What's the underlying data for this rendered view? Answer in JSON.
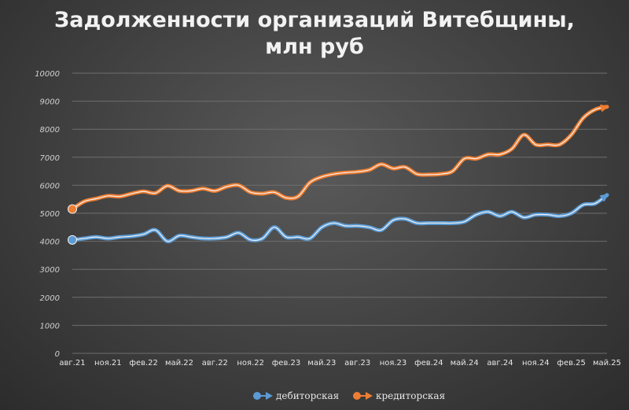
{
  "chart_data": {
    "type": "line",
    "title": [
      "Задолженности организаций Витебщины,",
      "млн руб"
    ],
    "xlabel": "",
    "ylabel": "",
    "ylim": [
      0,
      10000
    ],
    "yticks": [
      "0",
      "1000",
      "2000",
      "3000",
      "4000",
      "5000",
      "6000",
      "7000",
      "8000",
      "9000",
      "10000"
    ],
    "grid": true,
    "legend_position": "bottom",
    "x_tick_labels": [
      "авг.21",
      "ноя.21",
      "фев.22",
      "май.22",
      "авг.22",
      "ноя.22",
      "фев.23",
      "май.23",
      "авг.23",
      "ноя.23",
      "фев.24",
      "май.24",
      "авг.24",
      "ноя.24",
      "фев.25",
      "май.25"
    ],
    "x": [
      "авг.21",
      "сен.21",
      "окт.21",
      "ноя.21",
      "дек.21",
      "янв.22",
      "фев.22",
      "мар.22",
      "апр.22",
      "май.22",
      "июн.22",
      "июл.22",
      "авг.22",
      "сен.22",
      "окт.22",
      "ноя.22",
      "дек.22",
      "янв.23",
      "фев.23",
      "мар.23",
      "апр.23",
      "май.23",
      "июн.23",
      "июл.23",
      "авг.23",
      "сен.23",
      "окт.23",
      "ноя.23",
      "дек.23",
      "янв.24",
      "фев.24",
      "мар.24",
      "апр.24",
      "май.24",
      "июн.24",
      "июл.24",
      "авг.24",
      "сен.24",
      "окт.24",
      "ноя.24",
      "дек.24",
      "янв.25",
      "фев.25",
      "мар.25",
      "апр.25",
      "май.25"
    ],
    "series": [
      {
        "name": "дебиторская",
        "color": "#5b9bd5",
        "values": [
          4050,
          4100,
          4150,
          4100,
          4150,
          4180,
          4250,
          4400,
          4000,
          4200,
          4150,
          4100,
          4100,
          4150,
          4300,
          4050,
          4100,
          4500,
          4150,
          4150,
          4100,
          4500,
          4650,
          4550,
          4550,
          4500,
          4400,
          4750,
          4800,
          4650,
          4650,
          4650,
          4650,
          4700,
          4950,
          5050,
          4900,
          5050,
          4850,
          4950,
          4950,
          4900,
          5000,
          5300,
          5350,
          5650
        ]
      },
      {
        "name": "кредиторская",
        "color": "#ed7d31",
        "values": [
          5150,
          5420,
          5520,
          5620,
          5600,
          5700,
          5780,
          5720,
          5980,
          5800,
          5800,
          5880,
          5800,
          5950,
          6000,
          5750,
          5700,
          5750,
          5550,
          5600,
          6100,
          6300,
          6400,
          6450,
          6480,
          6550,
          6750,
          6600,
          6650,
          6400,
          6380,
          6400,
          6500,
          6950,
          6950,
          7100,
          7100,
          7300,
          7800,
          7450,
          7450,
          7450,
          7800,
          8400,
          8700,
          8800
        ]
      }
    ]
  }
}
